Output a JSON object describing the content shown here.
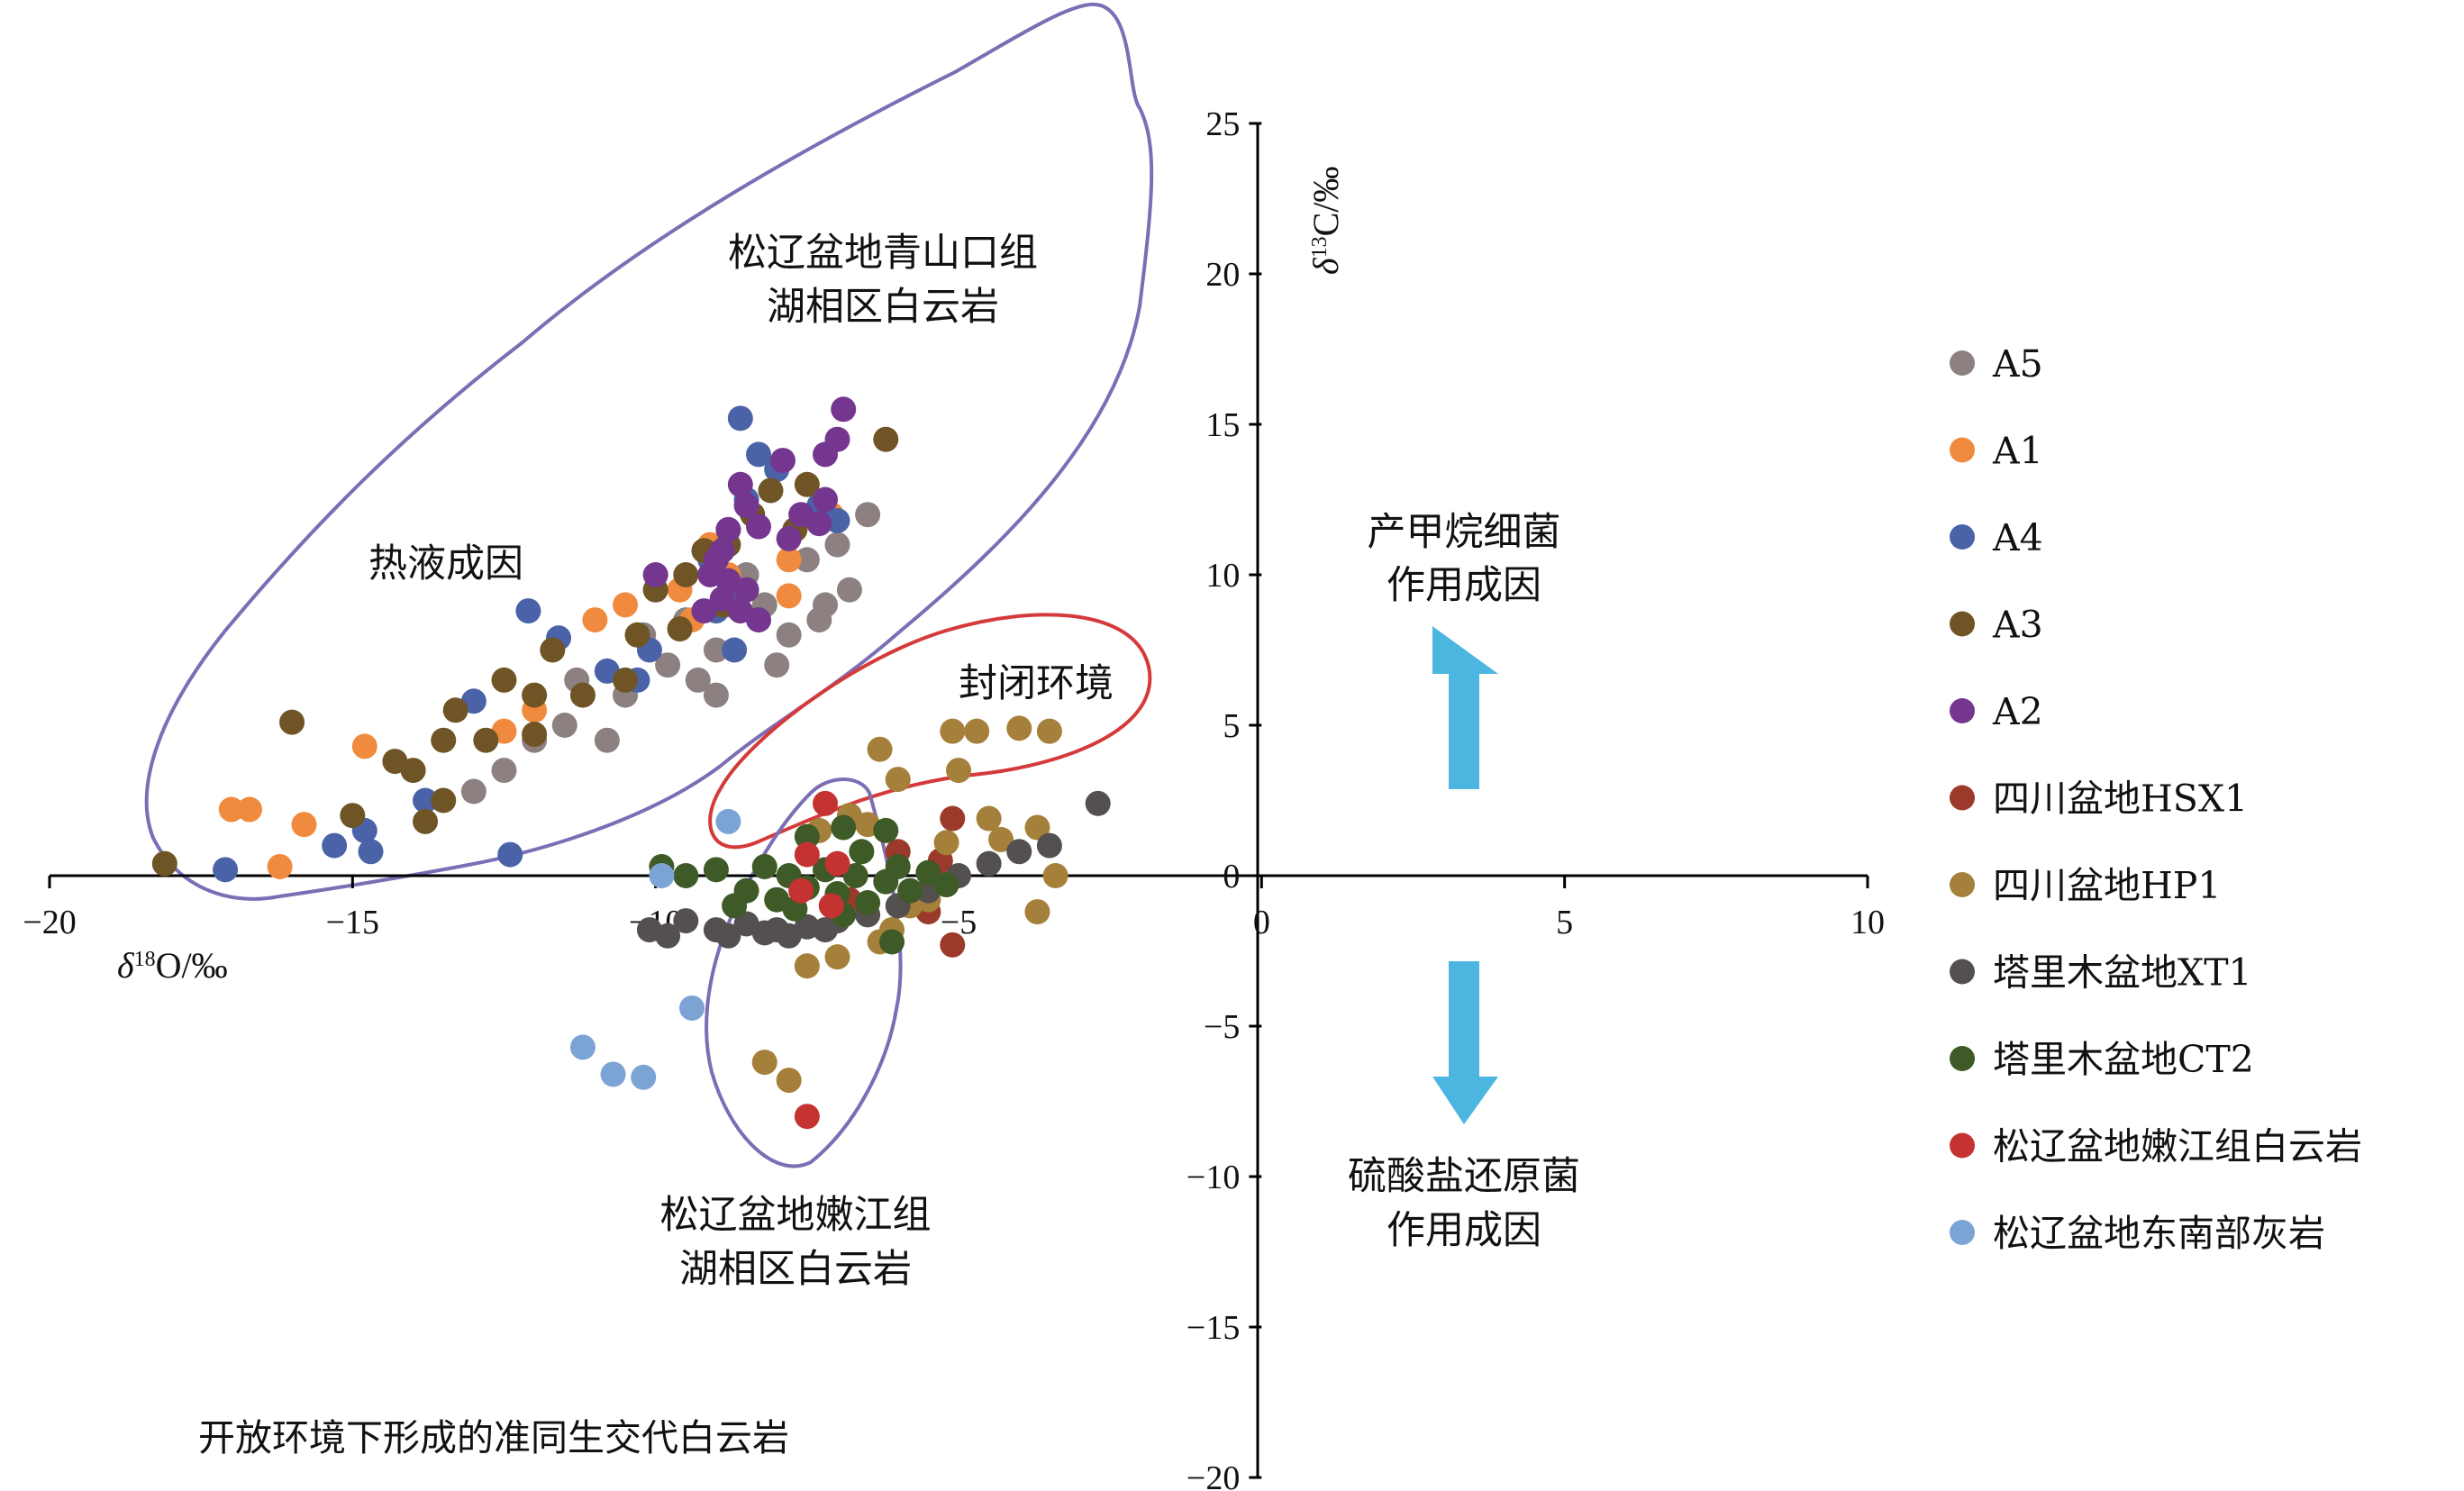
{
  "chart_data": {
    "type": "scatter",
    "xlabel": "δ18O/‰",
    "ylabel": "δ13C/‰",
    "xlim": [
      -20,
      10
    ],
    "ylim": [
      -20,
      25
    ],
    "x_ticks": [
      -20,
      -15,
      -10,
      -5,
      0,
      5,
      10
    ],
    "y_ticks": [
      -20,
      -15,
      -10,
      -5,
      0,
      5,
      10,
      15,
      20,
      25
    ],
    "x_tick_labels": [
      "−20",
      "−15",
      "−10",
      "−5",
      "0",
      "5",
      "10"
    ],
    "y_tick_labels": [
      "−20",
      "−15",
      "−10",
      "−5",
      "0",
      "5",
      "10",
      "15",
      "20",
      "25"
    ],
    "legend_position": "right",
    "series": [
      {
        "name": "A5",
        "color": "#8c8180",
        "points": [
          [
            -6.5,
            12
          ],
          [
            -7.0,
            11
          ],
          [
            -7.5,
            10.5
          ],
          [
            -6.8,
            9.5
          ],
          [
            -7.3,
            8.5
          ],
          [
            -7.8,
            8
          ],
          [
            -8.2,
            9
          ],
          [
            -8.5,
            10
          ],
          [
            -8.8,
            9
          ],
          [
            -9.0,
            7.5
          ],
          [
            -9.3,
            6.5
          ],
          [
            -9.5,
            8.5
          ],
          [
            -9.8,
            7
          ],
          [
            -10.2,
            8
          ],
          [
            -10.5,
            6
          ],
          [
            -10.8,
            4.5
          ],
          [
            -11.3,
            6.5
          ],
          [
            -11.5,
            5
          ],
          [
            -12.0,
            4.5
          ],
          [
            -12.5,
            3.5
          ],
          [
            -13.0,
            2.8
          ],
          [
            -9.0,
            6
          ],
          [
            -8.0,
            7
          ],
          [
            -7.2,
            9
          ]
        ]
      },
      {
        "name": "A1",
        "color": "#f08a3e",
        "points": [
          [
            -7.1,
            12
          ],
          [
            -7.8,
            10.5
          ],
          [
            -8.8,
            10
          ],
          [
            -9.1,
            11
          ],
          [
            -9.4,
            8.5
          ],
          [
            -9.6,
            9.5
          ],
          [
            -10.5,
            9
          ],
          [
            -11.0,
            8.5
          ],
          [
            -12.0,
            5.5
          ],
          [
            -12.5,
            4.8
          ],
          [
            -14.8,
            4.3
          ],
          [
            -15.8,
            1.7
          ],
          [
            -16.7,
            2.2
          ],
          [
            -17.0,
            2.2
          ],
          [
            -16.2,
            0.3
          ],
          [
            -7.8,
            9.3
          ]
        ]
      },
      {
        "name": "A4",
        "color": "#4a63a8",
        "points": [
          [
            -8.6,
            15.2
          ],
          [
            -8.3,
            14
          ],
          [
            -8.0,
            13.5
          ],
          [
            -7.3,
            12.3
          ],
          [
            -7.0,
            11.8
          ],
          [
            -8.5,
            12.5
          ],
          [
            -8.8,
            11.5
          ],
          [
            -9.1,
            10.5
          ],
          [
            -8.7,
            9.5
          ],
          [
            -9.0,
            8.8
          ],
          [
            -8.7,
            7.5
          ],
          [
            -10.0,
            9.5
          ],
          [
            -10.1,
            7.5
          ],
          [
            -10.3,
            6.5
          ],
          [
            -10.8,
            6.8
          ],
          [
            -12.1,
            8.8
          ],
          [
            -11.6,
            7.9
          ],
          [
            -13.0,
            5.8
          ],
          [
            -14.8,
            1.5
          ],
          [
            -15.3,
            1
          ],
          [
            -14.7,
            0.8
          ],
          [
            -12.4,
            0.7
          ],
          [
            -13.8,
            2.5
          ],
          [
            -17.1,
            0.2
          ]
        ]
      },
      {
        "name": "A3",
        "color": "#6f5526",
        "points": [
          [
            -6.2,
            14.5
          ],
          [
            -7.5,
            13
          ],
          [
            -7.7,
            11.5
          ],
          [
            -8.4,
            12
          ],
          [
            -8.8,
            11
          ],
          [
            -9.2,
            10.8
          ],
          [
            -9.5,
            10
          ],
          [
            -9.6,
            8.2
          ],
          [
            -10.0,
            9.5
          ],
          [
            -10.3,
            8
          ],
          [
            -10.5,
            6.5
          ],
          [
            -11.2,
            6
          ],
          [
            -11.7,
            7.5
          ],
          [
            -12.0,
            6
          ],
          [
            -12.5,
            6.5
          ],
          [
            -12.8,
            4.5
          ],
          [
            -13.3,
            5.5
          ],
          [
            -13.5,
            4.5
          ],
          [
            -14.0,
            3.5
          ],
          [
            -14.3,
            3.8
          ],
          [
            -13.5,
            2.5
          ],
          [
            -13.8,
            1.8
          ],
          [
            -15.0,
            2
          ],
          [
            -16.0,
            5.1
          ],
          [
            -18.1,
            0.4
          ],
          [
            -12.0,
            4.7
          ],
          [
            -8.9,
            9.0
          ],
          [
            -8.1,
            12.8
          ]
        ]
      },
      {
        "name": "A2",
        "color": "#74368f",
        "points": [
          [
            -6.9,
            15.5
          ],
          [
            -7.0,
            14.5
          ],
          [
            -7.2,
            14
          ],
          [
            -7.9,
            13.8
          ],
          [
            -7.2,
            12.5
          ],
          [
            -7.3,
            11.7
          ],
          [
            -7.6,
            12
          ],
          [
            -7.8,
            11.2
          ],
          [
            -8.3,
            11.6
          ],
          [
            -8.5,
            12.3
          ],
          [
            -8.6,
            13
          ],
          [
            -8.8,
            11.5
          ],
          [
            -8.9,
            10.8
          ],
          [
            -9.0,
            10.5
          ],
          [
            -9.1,
            10
          ],
          [
            -8.8,
            9.8
          ],
          [
            -8.5,
            9.5
          ],
          [
            -8.9,
            9.2
          ],
          [
            -9.2,
            8.8
          ],
          [
            -10.0,
            10
          ],
          [
            -8.6,
            8.8
          ],
          [
            -8.3,
            8.5
          ]
        ]
      },
      {
        "name": "四川盆地HSX1",
        "color": "#9b3a2a",
        "points": [
          [
            -5.1,
            -2.3
          ],
          [
            -5.5,
            -1.2
          ],
          [
            -6.8,
            -0.8
          ],
          [
            -5.3,
            0.5
          ],
          [
            -5.1,
            1.9
          ],
          [
            -6.0,
            0.8
          ]
        ]
      },
      {
        "name": "四川盆地HP1",
        "color": "#a5803a",
        "points": [
          [
            -4.7,
            4.8
          ],
          [
            -5.0,
            3.5
          ],
          [
            -5.1,
            4.8
          ],
          [
            -6.0,
            3.2
          ],
          [
            -6.3,
            4.2
          ],
          [
            -4.0,
            4.9
          ],
          [
            -3.5,
            4.8
          ],
          [
            -4.5,
            1.9
          ],
          [
            -5.2,
            1.1
          ],
          [
            -4.3,
            1.2
          ],
          [
            -3.7,
            1.6
          ],
          [
            -5.5,
            -0.8
          ],
          [
            -5.8,
            -1.0
          ],
          [
            -6.1,
            -1.8
          ],
          [
            -6.3,
            -2.2
          ],
          [
            -7.0,
            -2.7
          ],
          [
            -7.5,
            -3.0
          ],
          [
            -8.2,
            -6.2
          ],
          [
            -7.8,
            -6.8
          ],
          [
            -3.4,
            0.0
          ],
          [
            -3.7,
            -1.2
          ],
          [
            -6.8,
            2.0
          ],
          [
            -7.3,
            1.5
          ],
          [
            -6.5,
            1.7
          ]
        ]
      },
      {
        "name": "塔里木盆地XT1",
        "color": "#555050",
        "points": [
          [
            -10.1,
            -1.8
          ],
          [
            -9.5,
            -1.5
          ],
          [
            -9.0,
            -1.8
          ],
          [
            -8.5,
            -1.6
          ],
          [
            -8.0,
            -1.8
          ],
          [
            -7.5,
            -1.7
          ],
          [
            -7.0,
            -1.5
          ],
          [
            -6.5,
            -1.3
          ],
          [
            -6.0,
            -1.0
          ],
          [
            -5.5,
            -0.5
          ],
          [
            -5.0,
            0.0
          ],
          [
            -4.5,
            0.4
          ],
          [
            -4.0,
            0.8
          ],
          [
            -3.5,
            1.0
          ],
          [
            -2.7,
            2.4
          ],
          [
            -9.8,
            -2.0
          ],
          [
            -8.8,
            -2.0
          ],
          [
            -8.2,
            -1.9
          ],
          [
            -7.8,
            -2.0
          ],
          [
            -7.2,
            -1.8
          ]
        ]
      },
      {
        "name": "塔里木盆地CT2",
        "color": "#3e5a27",
        "points": [
          [
            -9.9,
            0.3
          ],
          [
            -9.5,
            0.0
          ],
          [
            -9.0,
            0.2
          ],
          [
            -8.5,
            -0.5
          ],
          [
            -8.2,
            0.3
          ],
          [
            -8.0,
            -0.8
          ],
          [
            -7.8,
            0.0
          ],
          [
            -7.5,
            -0.4
          ],
          [
            -7.2,
            0.2
          ],
          [
            -7.0,
            -0.6
          ],
          [
            -6.7,
            0.0
          ],
          [
            -6.5,
            -0.9
          ],
          [
            -6.2,
            -0.2
          ],
          [
            -6.0,
            0.3
          ],
          [
            -5.8,
            -0.5
          ],
          [
            -5.5,
            0.1
          ],
          [
            -5.2,
            -0.3
          ],
          [
            -8.7,
            -1.0
          ],
          [
            -7.7,
            -1.1
          ],
          [
            -6.9,
            -1.3
          ],
          [
            -6.1,
            -2.2
          ],
          [
            -7.5,
            1.3
          ],
          [
            -6.9,
            1.6
          ],
          [
            -6.2,
            1.5
          ],
          [
            -6.6,
            0.8
          ]
        ]
      },
      {
        "name": "松辽盆地嫩江组白云岩",
        "color": "#c43232",
        "points": [
          [
            -7.2,
            2.4
          ],
          [
            -7.5,
            0.7
          ],
          [
            -7.0,
            0.4
          ],
          [
            -7.6,
            -0.5
          ],
          [
            -7.1,
            -1.0
          ],
          [
            -7.5,
            -8.0
          ]
        ]
      },
      {
        "name": "松辽盆地东南部灰岩",
        "color": "#7ba3d4",
        "points": [
          [
            -8.8,
            1.8
          ],
          [
            -9.9,
            0.0
          ],
          [
            -9.4,
            -4.4
          ],
          [
            -11.2,
            -5.7
          ],
          [
            -10.7,
            -6.6
          ],
          [
            -10.2,
            -6.7
          ]
        ]
      }
    ]
  },
  "annotations": {
    "qingshankou_line1": "松辽盆地青山口组",
    "qingshankou_line2": "湖相区白云岩",
    "hydrothermal": "热液成因",
    "closed_env": "封闭环境",
    "nenjiang_line1": "松辽盆地嫩江组",
    "nenjiang_line2": "湖相区白云岩",
    "methanogen_line1": "产甲烷细菌",
    "methanogen_line2": "作用成因",
    "sulfate_line1": "硫酸盐还原菌",
    "sulfate_line2": "作用成因",
    "open_env": "开放环境下形成的准同生交代白云岩"
  },
  "colors": {
    "envelope_purple": "#7d6db5",
    "envelope_red": "#d53a3a",
    "arrow_blue": "#4db6e0"
  }
}
